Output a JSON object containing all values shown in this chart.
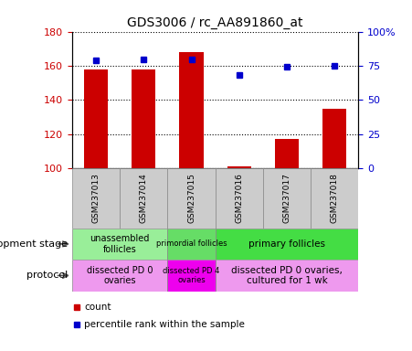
{
  "title": "GDS3006 / rc_AA891860_at",
  "samples": [
    "GSM237013",
    "GSM237014",
    "GSM237015",
    "GSM237016",
    "GSM237017",
    "GSM237018"
  ],
  "counts": [
    158,
    158,
    168,
    101,
    117,
    135
  ],
  "percentiles": [
    79,
    80,
    80,
    68,
    74,
    75
  ],
  "ylim_left": [
    100,
    180
  ],
  "ylim_right": [
    0,
    100
  ],
  "yticks_left": [
    100,
    120,
    140,
    160,
    180
  ],
  "yticks_right": [
    0,
    25,
    50,
    75,
    100
  ],
  "ytick_labels_right": [
    "0",
    "25",
    "50",
    "75",
    "100%"
  ],
  "bar_color": "#cc0000",
  "dot_color": "#0000cc",
  "background_color": "#ffffff",
  "plot_bg": "#ffffff",
  "dev_stage_groups": [
    {
      "label": "unassembled\nfollicles",
      "start": 0,
      "end": 2,
      "color": "#99ee99"
    },
    {
      "label": "primordial follicles",
      "start": 2,
      "end": 3,
      "color": "#66dd66"
    },
    {
      "label": "primary follicles",
      "start": 3,
      "end": 6,
      "color": "#44dd44"
    }
  ],
  "protocol_groups": [
    {
      "label": "dissected PD 0\novaries",
      "start": 0,
      "end": 2,
      "color": "#ee99ee"
    },
    {
      "label": "dissected PD 4\novaries",
      "start": 2,
      "end": 3,
      "color": "#ee00ee"
    },
    {
      "label": "dissected PD 0 ovaries,\ncultured for 1 wk",
      "start": 3,
      "end": 6,
      "color": "#ee99ee"
    }
  ],
  "dev_stage_label": "development stage",
  "protocol_label": "protocol",
  "legend_count": "count",
  "legend_pct": "percentile rank within the sample",
  "n_samples": 6
}
